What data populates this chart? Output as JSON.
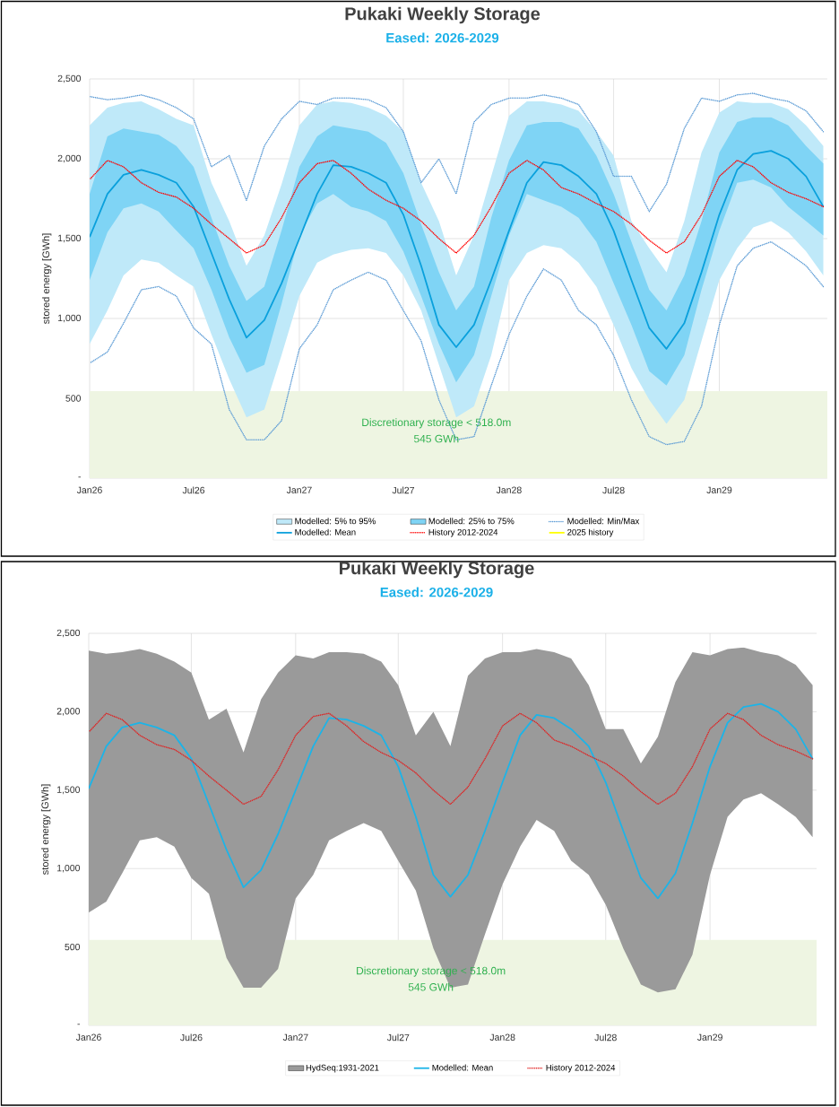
{
  "chart_data": [
    {
      "type": "line",
      "title": "Pukaki Weekly Storage",
      "subtitle": "Eased: 2026-2029",
      "ylabel": "stored energy [GWh]",
      "x": [
        "2026-01-01",
        "2026-02-01",
        "2026-03-01",
        "2026-04-01",
        "2026-05-01",
        "2026-06-01",
        "2026-07-01",
        "2026-08-01",
        "2026-09-01",
        "2026-10-01",
        "2026-11-01",
        "2026-12-01",
        "2027-01-01",
        "2027-02-01",
        "2027-03-01",
        "2027-04-01",
        "2027-05-01",
        "2027-06-01",
        "2027-07-01",
        "2027-08-01",
        "2027-09-01",
        "2027-10-01",
        "2027-11-01",
        "2027-12-01",
        "2028-01-01",
        "2028-02-01",
        "2028-03-01",
        "2028-04-01",
        "2028-05-01",
        "2028-06-01",
        "2028-07-01",
        "2028-08-01",
        "2028-09-01",
        "2028-10-01",
        "2028-11-01",
        "2028-12-01",
        "2029-01-01",
        "2029-02-01",
        "2029-03-01",
        "2029-04-01",
        "2029-05-01",
        "2029-06-01",
        "2029-07-01"
      ],
      "xlim": [
        "2026-01-01",
        "2029-07-08"
      ],
      "xticks": [
        {
          "value": "2026-01-01",
          "label": "Jan26"
        },
        {
          "value": "2026-07-01",
          "label": "Jul26"
        },
        {
          "value": "2027-01-01",
          "label": "Jan27"
        },
        {
          "value": "2027-07-01",
          "label": "Jul27"
        },
        {
          "value": "2028-01-01",
          "label": "Jan28"
        },
        {
          "value": "2028-07-01",
          "label": "Jul28"
        },
        {
          "value": "2029-01-01",
          "label": "Jan29"
        }
      ],
      "ylim": [
        0,
        2500
      ],
      "yticks": [
        {
          "value": 0,
          "label": "-"
        },
        500,
        {
          "value": 1000,
          "label": "1,000"
        },
        {
          "value": 1500,
          "label": "1,500"
        },
        {
          "value": 2000,
          "label": "2,000"
        },
        {
          "value": 2500,
          "label": "2,500"
        }
      ],
      "grid": true,
      "legend": "bottom",
      "bands": [
        {
          "axis": "y",
          "from": 0,
          "to": 545,
          "label": "Discretionary storage < 518.0m",
          "color": "#eef5e2"
        }
      ],
      "annotations": [
        "545 GWh"
      ],
      "series": [
        {
          "name": "Modelled: 5% to 95%",
          "type": "area",
          "color": "#bfe9f9",
          "values": [
            null,
            null,
            null,
            null,
            null,
            null,
            null,
            null,
            null,
            null,
            null,
            null,
            null,
            null,
            null,
            null,
            null,
            null,
            null,
            null,
            null,
            null,
            null,
            null,
            null,
            null,
            null,
            null,
            null,
            null,
            null,
            null,
            null,
            null,
            null,
            null,
            null,
            null,
            null,
            null,
            null,
            null,
            null
          ],
          "upper": [
            2210,
            2320,
            2350,
            2360,
            2310,
            2250,
            2210,
            1850,
            1610,
            1330,
            1520,
            1840,
            2210,
            2340,
            2360,
            2350,
            2320,
            2270,
            2170,
            1850,
            1610,
            1270,
            1520,
            1890,
            2270,
            2360,
            2360,
            2340,
            2300,
            2170,
            2020,
            1610,
            1440,
            1290,
            1610,
            2040,
            2290,
            2360,
            2350,
            2350,
            2310,
            2210,
            2080
          ],
          "lower": [
            840,
            1050,
            1270,
            1370,
            1350,
            1270,
            1200,
            900,
            620,
            380,
            430,
            770,
            1140,
            1350,
            1400,
            1430,
            1440,
            1410,
            1270,
            1050,
            710,
            380,
            450,
            770,
            1240,
            1410,
            1460,
            1440,
            1350,
            1200,
            960,
            690,
            490,
            340,
            490,
            860,
            1240,
            1440,
            1570,
            1610,
            1540,
            1420,
            1270
          ]
        },
        {
          "name": "Modelled: 25% to 75%",
          "type": "area",
          "color": "#7fd4f5",
          "values": [
            null,
            null,
            null,
            null,
            null,
            null,
            null,
            null,
            null,
            null,
            null,
            null,
            null,
            null,
            null,
            null,
            null,
            null,
            null,
            null,
            null,
            null,
            null,
            null,
            null,
            null,
            null,
            null,
            null,
            null,
            null,
            null,
            null,
            null,
            null,
            null,
            null,
            null,
            null,
            null,
            null,
            null,
            null
          ],
          "upper": [
            1780,
            2140,
            2190,
            2170,
            2150,
            2080,
            1950,
            1630,
            1330,
            1110,
            1200,
            1550,
            1950,
            2140,
            2210,
            2190,
            2170,
            2100,
            1910,
            1590,
            1290,
            1050,
            1200,
            1630,
            1990,
            2210,
            2230,
            2230,
            2190,
            2020,
            1780,
            1480,
            1180,
            1050,
            1270,
            1610,
            2040,
            2230,
            2260,
            2260,
            2210,
            2080,
            1970
          ],
          "lower": [
            1240,
            1540,
            1690,
            1720,
            1670,
            1550,
            1440,
            1180,
            880,
            660,
            710,
            1090,
            1520,
            1720,
            1780,
            1700,
            1670,
            1610,
            1420,
            1140,
            840,
            600,
            770,
            1140,
            1520,
            1780,
            1740,
            1700,
            1630,
            1480,
            1220,
            960,
            670,
            580,
            770,
            1180,
            1550,
            1850,
            1870,
            1820,
            1700,
            1610,
            1520
          ]
        },
        {
          "name": "Modelled: Min/Max",
          "type": "line",
          "color": "#5b9bd5",
          "line_style": "dotted",
          "values": [
            2390,
            2370,
            2380,
            2400,
            2370,
            2320,
            2250,
            1950,
            2020,
            1740,
            2080,
            2250,
            2360,
            2340,
            2380,
            2380,
            2370,
            2320,
            2170,
            1850,
            2000,
            1780,
            2230,
            2340,
            2380,
            2380,
            2400,
            2380,
            2340,
            2170,
            1890,
            1890,
            1670,
            1840,
            2190,
            2380,
            2360,
            2400,
            2410,
            2380,
            2360,
            2300,
            2170
          ]
        },
        {
          "type": "line",
          "color": "#5b9bd5",
          "line_style": "dotted",
          "values": [
            720,
            790,
            970,
            1180,
            1200,
            1140,
            940,
            840,
            430,
            240,
            240,
            360,
            810,
            960,
            1180,
            1240,
            1290,
            1240,
            1050,
            860,
            490,
            240,
            260,
            580,
            900,
            1140,
            1310,
            1240,
            1050,
            960,
            770,
            490,
            260,
            210,
            230,
            450,
            960,
            1330,
            1440,
            1480,
            1410,
            1330,
            1200
          ]
        },
        {
          "name": "Modelled: Mean",
          "type": "line",
          "color": "#0aa0dc",
          "line_style": "solid",
          "values": [
            1510,
            1780,
            1900,
            1930,
            1900,
            1850,
            1700,
            1410,
            1120,
            880,
            990,
            1220,
            1500,
            1780,
            1960,
            1950,
            1910,
            1850,
            1650,
            1330,
            960,
            820,
            960,
            1240,
            1550,
            1850,
            1980,
            1960,
            1890,
            1780,
            1550,
            1240,
            940,
            810,
            970,
            1290,
            1650,
            1930,
            2030,
            2050,
            2000,
            1890,
            1700
          ]
        },
        {
          "name": "History 2012-2024",
          "type": "line",
          "color": "#ff0000",
          "line_style": "dotted",
          "values": [
            1870,
            1990,
            1950,
            1850,
            1790,
            1760,
            1690,
            1590,
            1500,
            1410,
            1460,
            1630,
            1850,
            1970,
            1990,
            1910,
            1810,
            1740,
            1690,
            1610,
            1500,
            1410,
            1520,
            1700,
            1910,
            1990,
            1930,
            1820,
            1780,
            1720,
            1670,
            1590,
            1490,
            1410,
            1480,
            1650,
            1890,
            1990,
            1950,
            1850,
            1790,
            1750,
            1700
          ]
        },
        {
          "name": "2025 history",
          "type": "line",
          "color": "#ffff00",
          "line_style": "solid",
          "values": [
            null,
            null,
            null,
            null,
            null,
            null,
            null,
            null,
            null,
            null,
            null,
            null,
            null,
            null,
            null,
            null,
            null,
            null,
            null,
            null,
            null,
            null,
            null,
            null,
            null,
            null,
            null,
            null,
            null,
            null,
            null,
            null,
            null,
            null,
            null,
            null,
            null,
            null,
            null,
            null,
            null,
            null,
            null
          ]
        }
      ]
    },
    {
      "type": "line",
      "title": "Pukaki Weekly Storage",
      "subtitle": "Eased: 2026-2029",
      "ylabel": "stored energy [GWh]",
      "x": [
        "2026-01-01",
        "2026-02-01",
        "2026-03-01",
        "2026-04-01",
        "2026-05-01",
        "2026-06-01",
        "2026-07-01",
        "2026-08-01",
        "2026-09-01",
        "2026-10-01",
        "2026-11-01",
        "2026-12-01",
        "2027-01-01",
        "2027-02-01",
        "2027-03-01",
        "2027-04-01",
        "2027-05-01",
        "2027-06-01",
        "2027-07-01",
        "2027-08-01",
        "2027-09-01",
        "2027-10-01",
        "2027-11-01",
        "2027-12-01",
        "2028-01-01",
        "2028-02-01",
        "2028-03-01",
        "2028-04-01",
        "2028-05-01",
        "2028-06-01",
        "2028-07-01",
        "2028-08-01",
        "2028-09-01",
        "2028-10-01",
        "2028-11-01",
        "2028-12-01",
        "2029-01-01",
        "2029-02-01",
        "2029-03-01",
        "2029-04-01",
        "2029-05-01",
        "2029-06-01",
        "2029-07-01"
      ],
      "xlim": [
        "2026-01-01",
        "2029-07-08"
      ],
      "xticks": [
        {
          "value": "2026-01-01",
          "label": "Jan26"
        },
        {
          "value": "2026-07-01",
          "label": "Jul26"
        },
        {
          "value": "2027-01-01",
          "label": "Jan27"
        },
        {
          "value": "2027-07-01",
          "label": "Jul27"
        },
        {
          "value": "2028-01-01",
          "label": "Jan28"
        },
        {
          "value": "2028-07-01",
          "label": "Jul28"
        },
        {
          "value": "2029-01-01",
          "label": "Jan29"
        }
      ],
      "ylim": [
        0,
        2500
      ],
      "yticks": [
        {
          "value": 0,
          "label": "-"
        },
        500,
        {
          "value": 1000,
          "label": "1,000"
        },
        {
          "value": 1500,
          "label": "1,500"
        },
        {
          "value": 2000,
          "label": "2,000"
        },
        {
          "value": 2500,
          "label": "2,500"
        }
      ],
      "grid": true,
      "legend": "bottom",
      "bands": [
        {
          "axis": "y",
          "from": 0,
          "to": 545,
          "label": "Discretionary storage < 518.0m",
          "color": "#eef5e2"
        }
      ],
      "annotations": [
        "545 GWh"
      ],
      "series": [
        {
          "name": "HydSeq:1931-2021",
          "type": "area",
          "color": "#9a9a9a",
          "values": [
            null,
            null,
            null,
            null,
            null,
            null,
            null,
            null,
            null,
            null,
            null,
            null,
            null,
            null,
            null,
            null,
            null,
            null,
            null,
            null,
            null,
            null,
            null,
            null,
            null,
            null,
            null,
            null,
            null,
            null,
            null,
            null,
            null,
            null,
            null,
            null,
            null,
            null,
            null,
            null,
            null,
            null,
            null
          ],
          "upper": [
            2390,
            2370,
            2380,
            2400,
            2370,
            2320,
            2250,
            1950,
            2020,
            1740,
            2080,
            2250,
            2360,
            2340,
            2380,
            2380,
            2370,
            2320,
            2170,
            1850,
            2000,
            1780,
            2230,
            2340,
            2380,
            2380,
            2400,
            2380,
            2340,
            2170,
            1890,
            1890,
            1670,
            1840,
            2190,
            2380,
            2360,
            2400,
            2410,
            2380,
            2360,
            2300,
            2170
          ],
          "lower": [
            720,
            790,
            970,
            1180,
            1200,
            1140,
            940,
            840,
            430,
            240,
            240,
            360,
            810,
            960,
            1180,
            1240,
            1290,
            1240,
            1050,
            860,
            490,
            240,
            260,
            580,
            900,
            1140,
            1310,
            1240,
            1050,
            960,
            770,
            490,
            260,
            210,
            230,
            450,
            960,
            1330,
            1440,
            1480,
            1410,
            1330,
            1200
          ]
        },
        {
          "name": "Modelled: Mean",
          "type": "line",
          "color": "#1cb4e8",
          "line_style": "solid",
          "values": [
            1510,
            1780,
            1900,
            1930,
            1900,
            1850,
            1700,
            1410,
            1120,
            880,
            990,
            1220,
            1500,
            1780,
            1960,
            1950,
            1910,
            1850,
            1650,
            1330,
            960,
            820,
            960,
            1240,
            1550,
            1850,
            1980,
            1960,
            1890,
            1780,
            1550,
            1240,
            940,
            810,
            970,
            1290,
            1650,
            1930,
            2030,
            2050,
            2000,
            1890,
            1700
          ]
        },
        {
          "name": "History 2012-2024",
          "type": "line",
          "color": "#e02020",
          "line_style": "dotted",
          "values": [
            1870,
            1990,
            1950,
            1850,
            1790,
            1760,
            1690,
            1590,
            1500,
            1410,
            1460,
            1630,
            1850,
            1970,
            1990,
            1910,
            1810,
            1740,
            1690,
            1610,
            1500,
            1410,
            1520,
            1700,
            1910,
            1990,
            1930,
            1820,
            1780,
            1720,
            1670,
            1590,
            1490,
            1410,
            1480,
            1650,
            1890,
            1990,
            1950,
            1850,
            1790,
            1750,
            1700
          ]
        }
      ]
    }
  ]
}
